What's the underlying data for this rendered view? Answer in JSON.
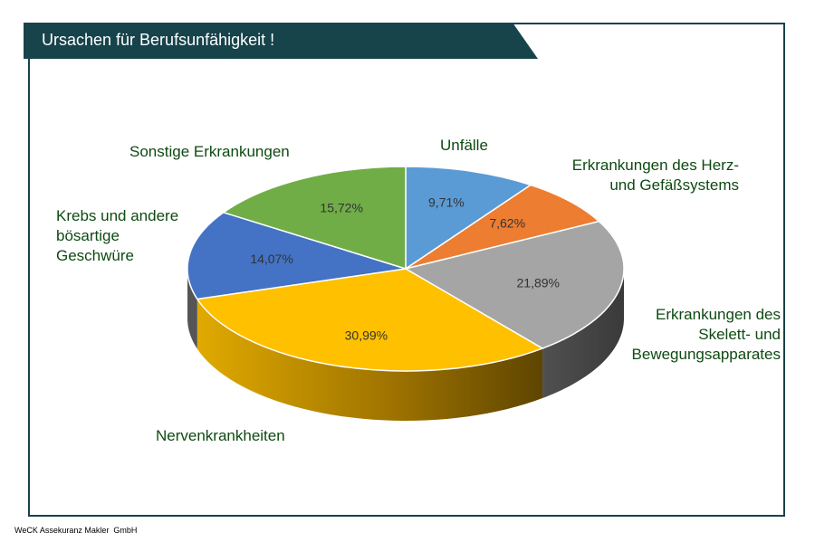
{
  "header": {
    "title": "Ursachen für Berufsunfähigkeit !"
  },
  "chart_data": {
    "type": "pie",
    "title": "Ursachen für Berufsunfähigkeit !",
    "slices": [
      {
        "label": "Unfälle",
        "value": 9.71,
        "display": "9,71%",
        "color": "#5b9bd5"
      },
      {
        "label": "Erkrankungen des Herz-\nund Gefäßsystems",
        "value": 7.62,
        "display": "7,62%",
        "color": "#ed7d31"
      },
      {
        "label": "Erkrankungen des\nSkelett- und\nBewegungsapparates",
        "value": 21.89,
        "display": "21,89%",
        "color": "#a5a5a5"
      },
      {
        "label": "Nervenkrankheiten",
        "value": 30.99,
        "display": "30,99%",
        "color": "#ffc000"
      },
      {
        "label": "Krebs und andere\nbösartige\nGeschwüre",
        "value": 14.07,
        "display": "14,07%",
        "color": "#4472c4"
      },
      {
        "label": "Sonstige  Erkrankungen",
        "value": 15.72,
        "display": "15,72%",
        "color": "#70ad47"
      }
    ],
    "legend": "none"
  },
  "footer": {
    "company": "WeCK Assekuranz Makler  GmbH"
  }
}
